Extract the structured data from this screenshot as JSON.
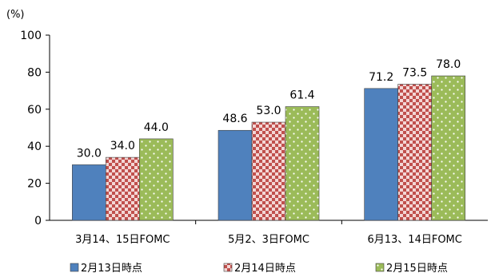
{
  "chart_data": {
    "type": "bar",
    "unit_label": "(%)",
    "categories": [
      "3月14、15日FOMC",
      "5月2、3日FOMC",
      "6月13、14日FOMC"
    ],
    "series": [
      {
        "name": "2月13日時点",
        "values": [
          30.0,
          48.6,
          71.2
        ],
        "value_labels": [
          "30.0",
          "48.6",
          "71.2"
        ],
        "color": "#4f81bd",
        "pattern": "solid"
      },
      {
        "name": "2月14日時点",
        "values": [
          34.0,
          53.0,
          73.5
        ],
        "value_labels": [
          "34.0",
          "53.0",
          "73.5"
        ],
        "color": "#c0504d",
        "pattern": "checker"
      },
      {
        "name": "2月15日時点",
        "values": [
          44.0,
          61.4,
          78.0
        ],
        "value_labels": [
          "44.0",
          "61.4",
          "78.0"
        ],
        "color": "#9bbb59",
        "pattern": "dots"
      }
    ],
    "ylim": [
      0,
      100
    ],
    "yticks": [
      "0",
      "20",
      "40",
      "60",
      "80",
      "100"
    ],
    "grid": false,
    "legend_position": "bottom"
  }
}
